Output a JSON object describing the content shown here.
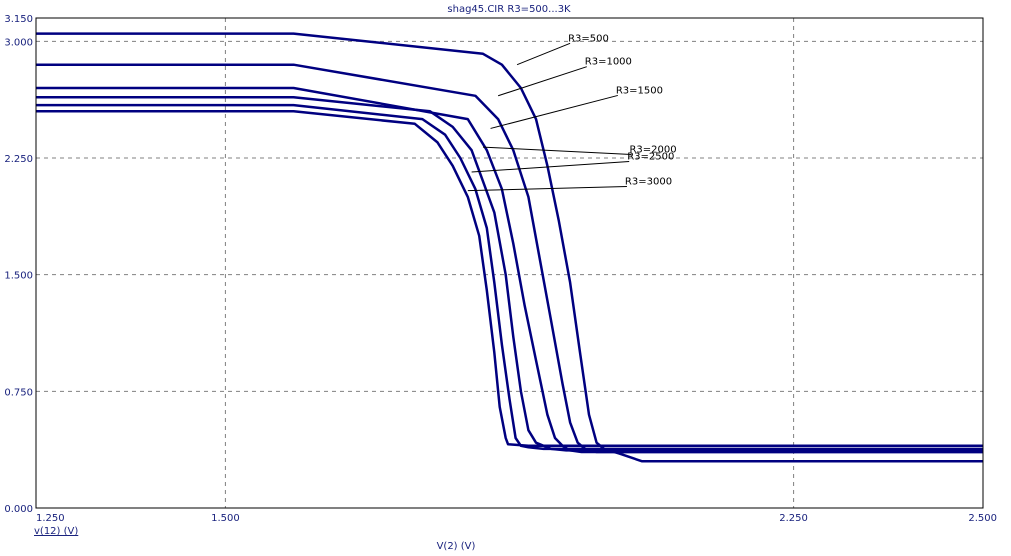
{
  "chart_data": {
    "type": "line",
    "title": "shag45.CIR R3=500...3K",
    "xlabel": "V(2) (V)",
    "ylabel": "v(12) (V)",
    "xlim": [
      1.25,
      2.5
    ],
    "ylim": [
      0.0,
      3.15
    ],
    "x_ticks": [
      1.25,
      1.5,
      2.25,
      2.5
    ],
    "x_tick_labels": [
      "1.250",
      "1.500",
      "2.250",
      "2.500"
    ],
    "x_grid": [
      1.5,
      2.25
    ],
    "y_ticks": [
      0.0,
      0.75,
      1.5,
      2.25,
      3.0,
      3.15
    ],
    "y_tick_labels": [
      "0.000",
      "0.750",
      "1.500",
      "2.250",
      "3.000",
      "3.150"
    ],
    "y_grid": [
      0.75,
      1.5,
      2.25,
      3.0
    ],
    "grid": true,
    "colors": {
      "series": "#000080",
      "grid": "#808080",
      "text": "#1a237e",
      "annotation": "#000000"
    },
    "series": [
      {
        "name": "R3=500",
        "x": [
          1.25,
          1.34,
          1.59,
          1.84,
          1.865,
          1.89,
          1.91,
          1.925,
          1.94,
          1.955,
          1.968,
          1.98,
          1.99,
          2.0,
          2.02,
          2.05,
          2.1,
          2.5
        ],
        "y": [
          3.05,
          3.05,
          3.05,
          2.92,
          2.85,
          2.7,
          2.5,
          2.2,
          1.85,
          1.45,
          1.0,
          0.6,
          0.42,
          0.38,
          0.35,
          0.3,
          0.3,
          0.3
        ]
      },
      {
        "name": "R3=1000",
        "x": [
          1.25,
          1.34,
          1.59,
          1.83,
          1.86,
          1.88,
          1.9,
          1.915,
          1.93,
          1.945,
          1.955,
          1.965,
          1.975,
          1.99,
          2.05,
          2.5
        ],
        "y": [
          2.85,
          2.85,
          2.85,
          2.65,
          2.5,
          2.3,
          2.0,
          1.6,
          1.2,
          0.8,
          0.55,
          0.42,
          0.38,
          0.36,
          0.36,
          0.36
        ]
      },
      {
        "name": "R3=1500",
        "x": [
          1.25,
          1.34,
          1.59,
          1.82,
          1.845,
          1.865,
          1.88,
          1.895,
          1.91,
          1.925,
          1.935,
          1.945,
          1.955,
          1.97,
          2.05,
          2.5
        ],
        "y": [
          2.7,
          2.7,
          2.7,
          2.5,
          2.3,
          2.05,
          1.7,
          1.3,
          0.95,
          0.6,
          0.45,
          0.4,
          0.37,
          0.36,
          0.36,
          0.36
        ]
      },
      {
        "name": "R3=2000",
        "x": [
          1.25,
          1.34,
          1.59,
          1.77,
          1.8,
          1.825,
          1.84,
          1.855,
          1.87,
          1.88,
          1.89,
          1.9,
          1.91,
          1.92,
          1.93,
          1.95,
          2.5
        ],
        "y": [
          2.64,
          2.64,
          2.64,
          2.55,
          2.45,
          2.3,
          2.1,
          1.9,
          1.5,
          1.1,
          0.75,
          0.5,
          0.42,
          0.4,
          0.38,
          0.37,
          0.37
        ]
      },
      {
        "name": "R3=2500",
        "x": [
          1.25,
          1.34,
          1.59,
          1.76,
          1.79,
          1.81,
          1.83,
          1.845,
          1.855,
          1.865,
          1.875,
          1.883,
          1.89,
          1.9,
          1.92,
          2.5
        ],
        "y": [
          2.59,
          2.59,
          2.59,
          2.5,
          2.4,
          2.25,
          2.05,
          1.8,
          1.45,
          1.05,
          0.7,
          0.45,
          0.4,
          0.39,
          0.38,
          0.38
        ]
      },
      {
        "name": "R3=3000",
        "x": [
          1.25,
          1.34,
          1.59,
          1.75,
          1.78,
          1.8,
          1.82,
          1.835,
          1.845,
          1.855,
          1.862,
          1.87,
          1.873,
          1.9,
          2.5
        ],
        "y": [
          2.55,
          2.55,
          2.55,
          2.47,
          2.35,
          2.2,
          2.0,
          1.75,
          1.4,
          1.0,
          0.65,
          0.45,
          0.41,
          0.4,
          0.4
        ]
      }
    ],
    "annotations": [
      {
        "text": "R3=500",
        "x": 1.955,
        "y": 3.0,
        "target": [
          1.885,
          2.85
        ]
      },
      {
        "text": "R3=1000",
        "x": 1.977,
        "y": 2.85,
        "target": [
          1.86,
          2.65
        ]
      },
      {
        "text": "R3=1500",
        "x": 2.018,
        "y": 2.665,
        "target": [
          1.85,
          2.44
        ]
      },
      {
        "text": "R3=2000",
        "x": 2.036,
        "y": 2.285,
        "target": [
          1.84,
          2.32
        ]
      },
      {
        "text": "R3=2500",
        "x": 2.033,
        "y": 2.24,
        "target": [
          1.825,
          2.16
        ]
      },
      {
        "text": "R3=3000",
        "x": 2.03,
        "y": 2.08,
        "target": [
          1.82,
          2.04
        ]
      }
    ]
  }
}
